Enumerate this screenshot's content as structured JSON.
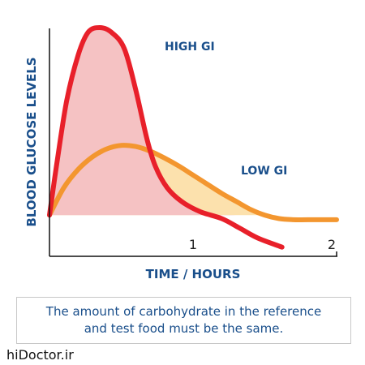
{
  "chart_data": {
    "type": "line",
    "title": "",
    "xlabel": "TIME / HOURS",
    "ylabel": "BLOOD GLUCOSE LEVELS",
    "xlim": [
      0,
      2
    ],
    "ylim": [
      0,
      10
    ],
    "x_ticks": [
      "1",
      "2"
    ],
    "x_tick_values": [
      1,
      2
    ],
    "baseline": 1.8,
    "grid": false,
    "series": [
      {
        "name": "HIGH GI",
        "color": "#e8202a",
        "fill": "#f5c2c3",
        "x": [
          0,
          0.05,
          0.12,
          0.2,
          0.27,
          0.35,
          0.43,
          0.52,
          0.6,
          0.68,
          0.74,
          0.82,
          0.92,
          1.05,
          1.2,
          1.32,
          1.45,
          1.62
        ],
        "y": [
          1.8,
          4.0,
          6.8,
          8.8,
          9.8,
          10.0,
          9.8,
          9.1,
          7.3,
          5.1,
          3.9,
          3.0,
          2.4,
          1.95,
          1.65,
          1.25,
          0.8,
          0.4
        ]
      },
      {
        "name": "LOW GI",
        "color": "#f3962f",
        "fill": "#fce1ad",
        "x": [
          0,
          0.1,
          0.2,
          0.3,
          0.4,
          0.5,
          0.6,
          0.7,
          0.8,
          0.9,
          1.0,
          1.1,
          1.2,
          1.3,
          1.4,
          1.5,
          1.6,
          1.7,
          1.8,
          2.0
        ],
        "y": [
          1.8,
          3.0,
          3.8,
          4.35,
          4.7,
          4.85,
          4.8,
          4.6,
          4.3,
          3.95,
          3.55,
          3.15,
          2.75,
          2.4,
          2.05,
          1.8,
          1.65,
          1.6,
          1.6,
          1.6
        ]
      }
    ]
  },
  "note": {
    "line1": "The amount of carbohydrate in the reference",
    "line2": "and test food must be the same."
  },
  "watermark": "hiDoctor.ir"
}
